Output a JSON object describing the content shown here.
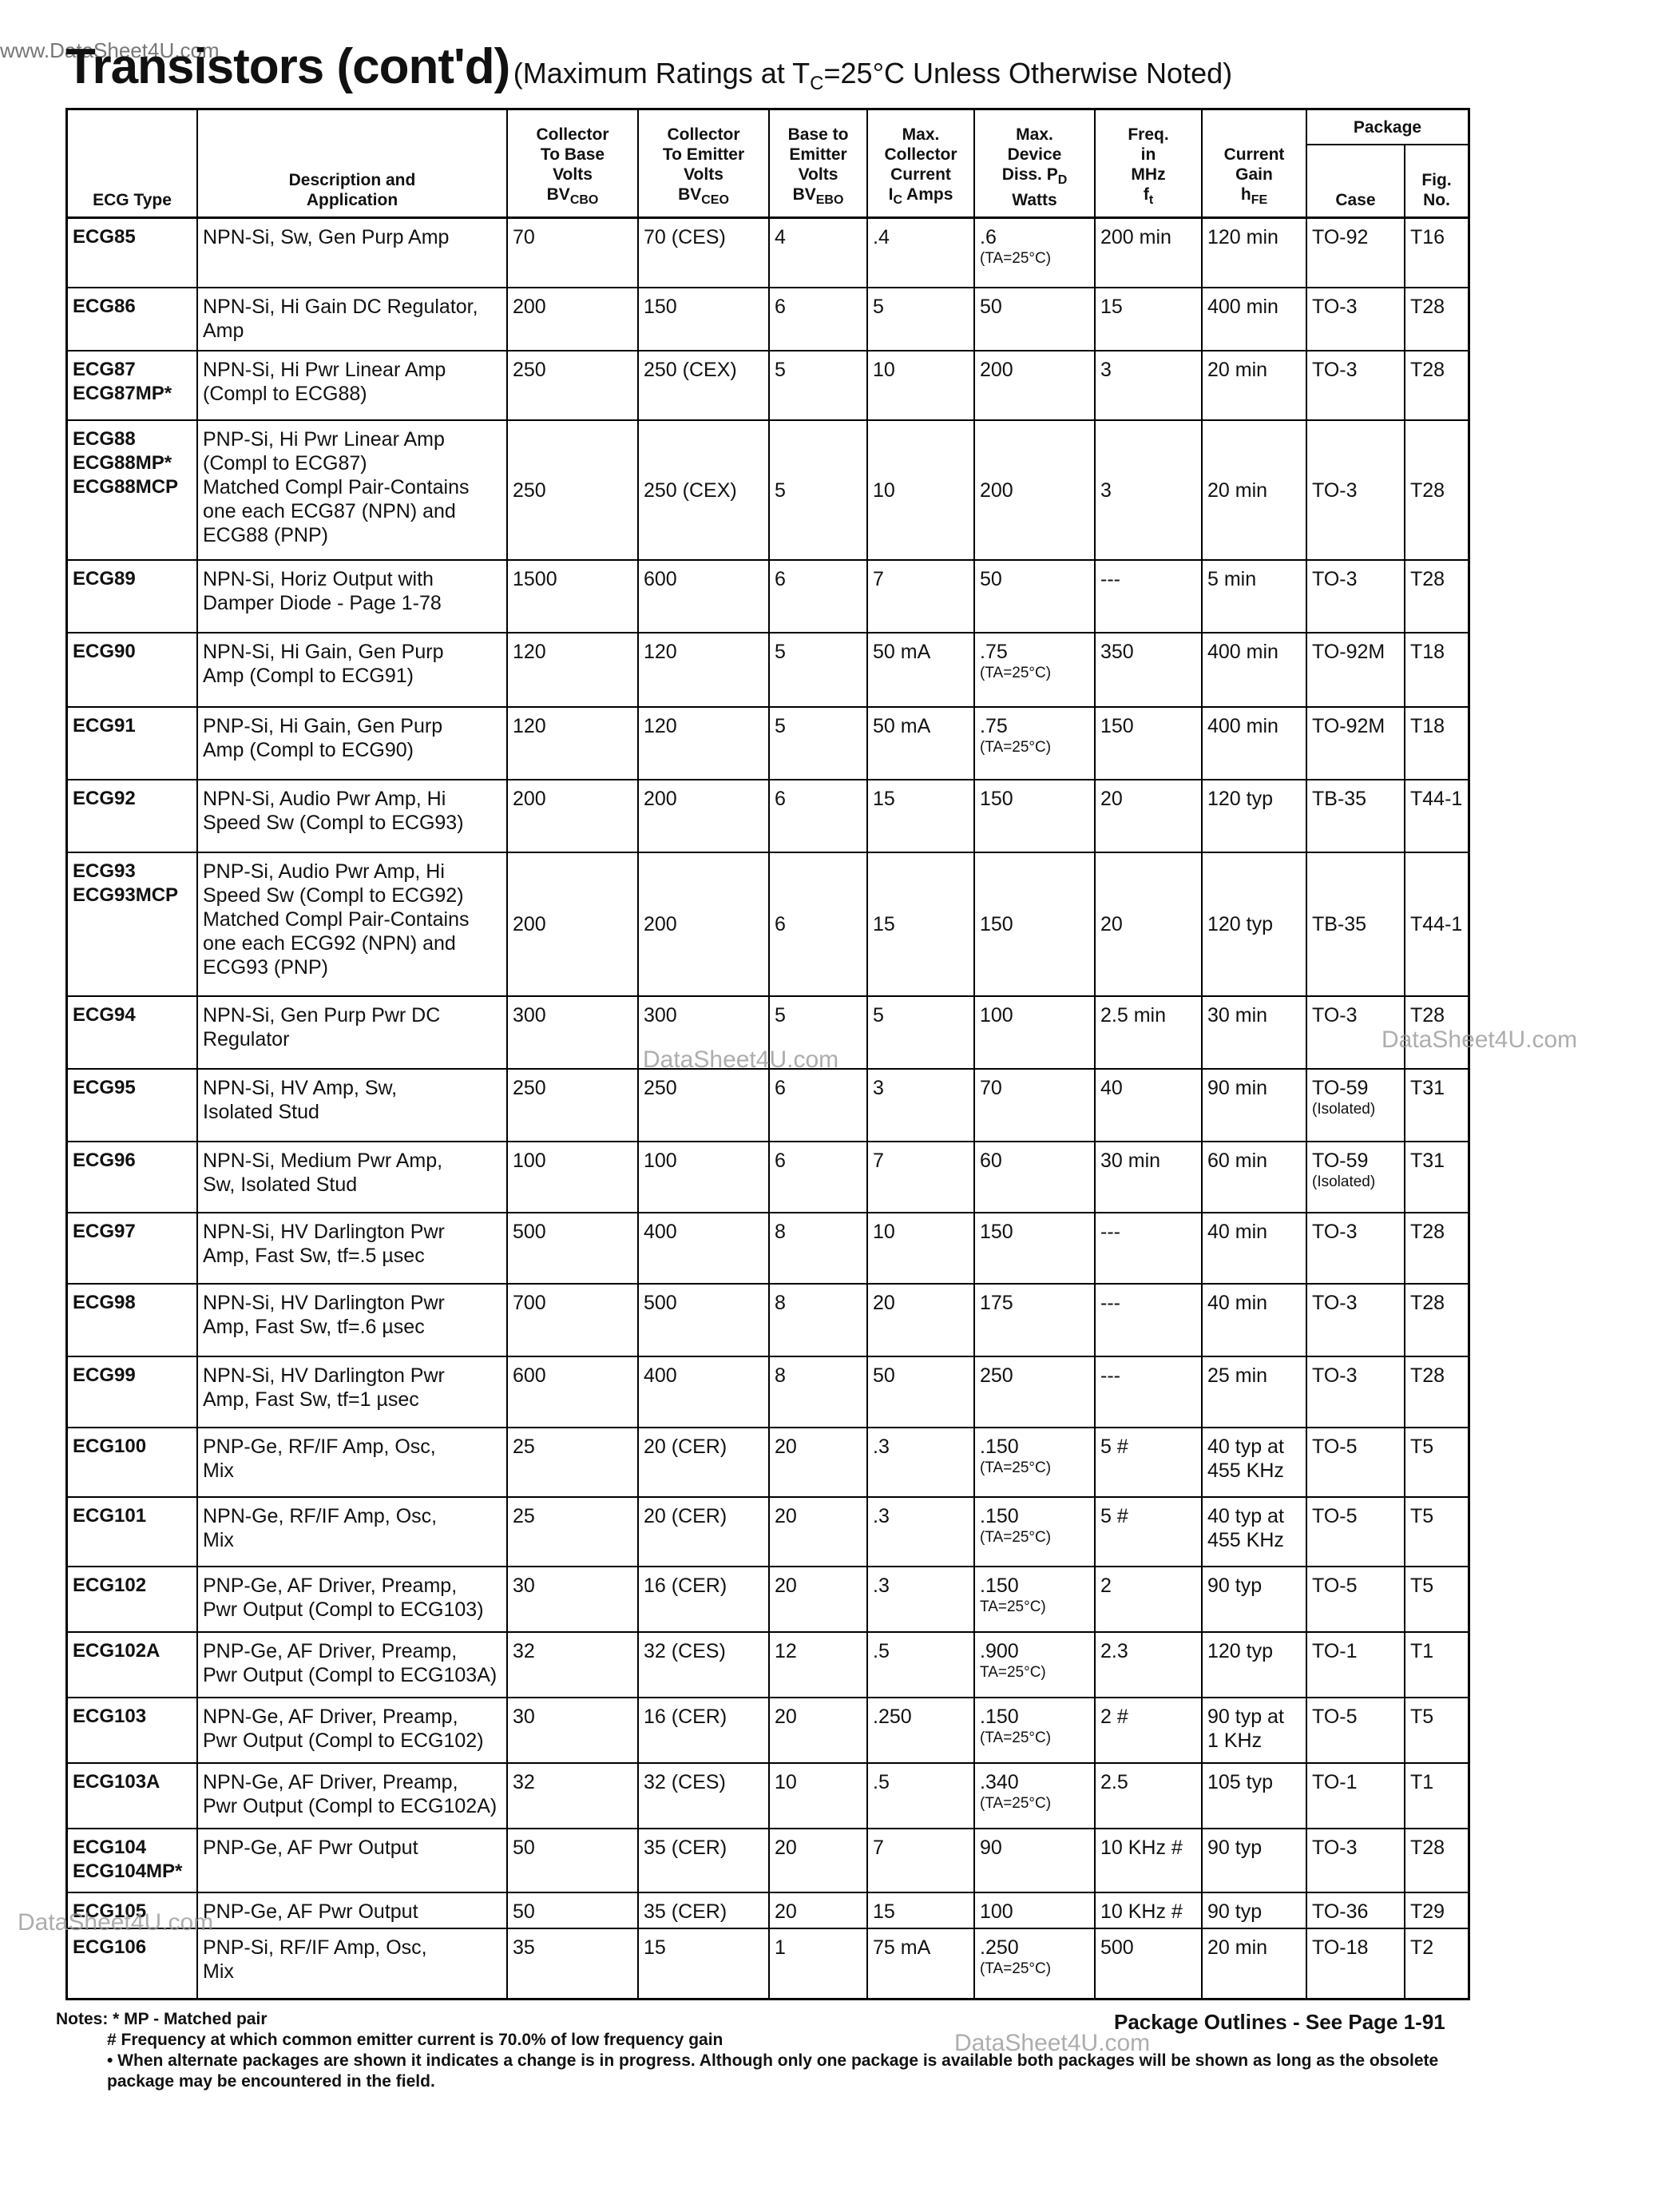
{
  "watermark_top": "www.DataSheet4U.com",
  "title": "Transistors (cont'd)",
  "subtitle": {
    "text": "(Maximum Ratings at T",
    "sub": "C",
    "after": "=25°C Unless Otherwise Noted)"
  },
  "table": {
    "package_label": "Package",
    "columns": [
      {
        "lines": [
          "ECG Type"
        ]
      },
      {
        "lines": [
          "Description and",
          "Application"
        ]
      },
      {
        "lines": [
          "Collector",
          "To Base",
          "Volts",
          {
            "text": "BV",
            "sub": "CBO"
          }
        ]
      },
      {
        "lines": [
          "Collector",
          "To Emitter",
          "Volts",
          {
            "text": "BV",
            "sub": "CEO"
          }
        ]
      },
      {
        "lines": [
          "Base to",
          "Emitter",
          "Volts",
          {
            "text": "BV",
            "sub": "EBO"
          }
        ]
      },
      {
        "lines": [
          "Max.",
          "Collector",
          "Current",
          {
            "text": "I",
            "sub": "C",
            "after": " Amps"
          }
        ]
      },
      {
        "lines": [
          "Max.",
          "Device",
          {
            "text": "Diss. P",
            "sub": "D"
          },
          "Watts"
        ]
      },
      {
        "lines": [
          "Freq.",
          "in",
          "MHz",
          {
            "text": "f",
            "sub": "t"
          }
        ]
      },
      {
        "lines": [
          "Current",
          "Gain",
          {
            "text": "h",
            "sub": "FE"
          }
        ]
      },
      {
        "lines": [
          "Case"
        ]
      },
      {
        "lines": [
          "Fig.",
          "No."
        ]
      }
    ],
    "rows": [
      [
        [
          "ECG85"
        ],
        [
          "NPN-Si, Sw, Gen Purp Amp"
        ],
        [
          "70"
        ],
        [
          "70 (CES)"
        ],
        [
          "4"
        ],
        [
          ".4"
        ],
        [
          ".6",
          "(TA=25°C)"
        ],
        [
          "200 min"
        ],
        [
          "120 min"
        ],
        [
          "TO-92"
        ],
        [
          "T16"
        ]
      ],
      [
        [
          "ECG86"
        ],
        [
          "NPN-Si, Hi Gain DC Regulator,",
          "Amp"
        ],
        [
          "200"
        ],
        [
          "150"
        ],
        [
          "6"
        ],
        [
          "5"
        ],
        [
          "50"
        ],
        [
          "15"
        ],
        [
          "400 min"
        ],
        [
          "TO-3"
        ],
        [
          "T28"
        ]
      ],
      [
        [
          "ECG87",
          "ECG87MP*"
        ],
        [
          "NPN-Si, Hi Pwr Linear Amp",
          "(Compl to ECG88)"
        ],
        [
          "250"
        ],
        [
          "250 (CEX)"
        ],
        [
          "5"
        ],
        [
          "10"
        ],
        [
          "200"
        ],
        [
          "3"
        ],
        [
          "20 min"
        ],
        [
          "TO-3"
        ],
        [
          "T28"
        ]
      ],
      [
        [
          "ECG88",
          "ECG88MP*",
          "ECG88MCP"
        ],
        [
          "PNP-Si, Hi Pwr Linear Amp",
          "(Compl to ECG87)",
          "Matched Compl Pair-Contains",
          "one each ECG87 (NPN) and",
          "ECG88 (PNP)"
        ],
        [
          "250"
        ],
        [
          "250 (CEX)"
        ],
        [
          "5"
        ],
        [
          "10"
        ],
        [
          "200"
        ],
        [
          "3"
        ],
        [
          "20 min"
        ],
        [
          "TO-3"
        ],
        [
          "T28"
        ]
      ],
      [
        [
          "ECG89"
        ],
        [
          "NPN-Si, Horiz Output with",
          "Damper Diode - Page 1-78"
        ],
        [
          "1500"
        ],
        [
          "600"
        ],
        [
          "6"
        ],
        [
          "7"
        ],
        [
          "50"
        ],
        [
          "---"
        ],
        [
          "5 min"
        ],
        [
          "TO-3"
        ],
        [
          "T28"
        ]
      ],
      [
        [
          "ECG90"
        ],
        [
          "NPN-Si, Hi Gain, Gen Purp",
          "Amp (Compl to ECG91)"
        ],
        [
          "120"
        ],
        [
          "120"
        ],
        [
          "5"
        ],
        [
          "50 mA"
        ],
        [
          ".75",
          "(TA=25°C)"
        ],
        [
          "350"
        ],
        [
          "400 min"
        ],
        [
          "TO-92M"
        ],
        [
          "T18"
        ]
      ],
      [
        [
          "ECG91"
        ],
        [
          "PNP-Si, Hi Gain, Gen Purp",
          "Amp (Compl to ECG90)"
        ],
        [
          "120"
        ],
        [
          "120"
        ],
        [
          "5"
        ],
        [
          "50 mA"
        ],
        [
          ".75",
          "(TA=25°C)"
        ],
        [
          "150"
        ],
        [
          "400 min"
        ],
        [
          "TO-92M"
        ],
        [
          "T18"
        ]
      ],
      [
        [
          "ECG92"
        ],
        [
          "NPN-Si, Audio Pwr Amp, Hi",
          "Speed Sw (Compl to ECG93)"
        ],
        [
          "200"
        ],
        [
          "200"
        ],
        [
          "6"
        ],
        [
          "15"
        ],
        [
          "150"
        ],
        [
          "20"
        ],
        [
          "120 typ"
        ],
        [
          "TB-35"
        ],
        [
          "T44-1"
        ]
      ],
      [
        [
          "ECG93",
          "ECG93MCP"
        ],
        [
          "PNP-Si, Audio Pwr Amp, Hi",
          "Speed Sw (Compl to ECG92)",
          "Matched Compl Pair-Contains",
          "one each ECG92 (NPN) and",
          "ECG93 (PNP)"
        ],
        [
          "200"
        ],
        [
          "200"
        ],
        [
          "6"
        ],
        [
          "15"
        ],
        [
          "150"
        ],
        [
          "20"
        ],
        [
          "120 typ"
        ],
        [
          "TB-35"
        ],
        [
          "T44-1"
        ]
      ],
      [
        [
          "ECG94"
        ],
        [
          "NPN-Si, Gen Purp Pwr DC",
          "Regulator"
        ],
        [
          "300"
        ],
        [
          "300"
        ],
        [
          "5"
        ],
        [
          "5"
        ],
        [
          "100"
        ],
        [
          "2.5 min"
        ],
        [
          "30 min"
        ],
        [
          "TO-3"
        ],
        [
          "T28"
        ]
      ],
      [
        [
          "ECG95"
        ],
        [
          "NPN-Si, HV Amp, Sw,",
          "Isolated Stud"
        ],
        [
          "250"
        ],
        [
          "250"
        ],
        [
          "6"
        ],
        [
          "3"
        ],
        [
          "70"
        ],
        [
          "40"
        ],
        [
          "90 min"
        ],
        [
          "TO-59",
          "(Isolated)"
        ],
        [
          "T31"
        ]
      ],
      [
        [
          "ECG96"
        ],
        [
          "NPN-Si, Medium Pwr Amp,",
          "Sw, Isolated Stud"
        ],
        [
          "100"
        ],
        [
          "100"
        ],
        [
          "6"
        ],
        [
          "7"
        ],
        [
          "60"
        ],
        [
          "30 min"
        ],
        [
          "60 min"
        ],
        [
          "TO-59",
          "(Isolated)"
        ],
        [
          "T31"
        ]
      ],
      [
        [
          "ECG97"
        ],
        [
          "NPN-Si, HV Darlington Pwr",
          "Amp, Fast Sw, tf=.5 µsec"
        ],
        [
          "500"
        ],
        [
          "400"
        ],
        [
          "8"
        ],
        [
          "10"
        ],
        [
          "150"
        ],
        [
          "---"
        ],
        [
          "40 min"
        ],
        [
          "TO-3"
        ],
        [
          "T28"
        ]
      ],
      [
        [
          "ECG98"
        ],
        [
          "NPN-Si, HV Darlington Pwr",
          "Amp, Fast Sw, tf=.6 µsec"
        ],
        [
          "700"
        ],
        [
          "500"
        ],
        [
          "8"
        ],
        [
          "20"
        ],
        [
          "175"
        ],
        [
          "---"
        ],
        [
          "40 min"
        ],
        [
          "TO-3"
        ],
        [
          "T28"
        ]
      ],
      [
        [
          "ECG99"
        ],
        [
          "NPN-Si, HV Darlington Pwr",
          "Amp, Fast Sw, tf=1 µsec"
        ],
        [
          "600"
        ],
        [
          "400"
        ],
        [
          "8"
        ],
        [
          "50"
        ],
        [
          "250"
        ],
        [
          "---"
        ],
        [
          "25 min"
        ],
        [
          "TO-3"
        ],
        [
          "T28"
        ]
      ],
      [
        [
          "ECG100"
        ],
        [
          "PNP-Ge, RF/IF Amp, Osc,",
          "Mix"
        ],
        [
          "25"
        ],
        [
          "20 (CER)"
        ],
        [
          "20"
        ],
        [
          ".3"
        ],
        [
          ".150",
          "(TA=25°C)"
        ],
        [
          "5 #"
        ],
        [
          "40 typ at",
          "455 KHz"
        ],
        [
          "TO-5"
        ],
        [
          "T5"
        ]
      ],
      [
        [
          "ECG101"
        ],
        [
          "NPN-Ge, RF/IF Amp, Osc,",
          "Mix"
        ],
        [
          "25"
        ],
        [
          "20 (CER)"
        ],
        [
          "20"
        ],
        [
          ".3"
        ],
        [
          ".150",
          "(TA=25°C)"
        ],
        [
          "5 #"
        ],
        [
          "40 typ at",
          "455 KHz"
        ],
        [
          "TO-5"
        ],
        [
          "T5"
        ]
      ],
      [
        [
          "ECG102"
        ],
        [
          "PNP-Ge, AF Driver, Preamp,",
          "Pwr Output (Compl to ECG103)"
        ],
        [
          "30"
        ],
        [
          "16 (CER)"
        ],
        [
          "20"
        ],
        [
          ".3"
        ],
        [
          ".150",
          "TA=25°C)"
        ],
        [
          "2"
        ],
        [
          "90 typ"
        ],
        [
          "TO-5"
        ],
        [
          "T5"
        ]
      ],
      [
        [
          "ECG102A"
        ],
        [
          "PNP-Ge, AF Driver, Preamp,",
          "Pwr Output (Compl to ECG103A)"
        ],
        [
          "32"
        ],
        [
          "32 (CES)"
        ],
        [
          "12"
        ],
        [
          ".5"
        ],
        [
          ".900",
          "TA=25°C)"
        ],
        [
          "2.3"
        ],
        [
          "120 typ"
        ],
        [
          "TO-1"
        ],
        [
          "T1"
        ]
      ],
      [
        [
          "ECG103"
        ],
        [
          "NPN-Ge, AF Driver, Preamp,",
          "Pwr Output (Compl to ECG102)"
        ],
        [
          "30"
        ],
        [
          "16 (CER)"
        ],
        [
          "20"
        ],
        [
          ".250"
        ],
        [
          ".150",
          "(TA=25°C)"
        ],
        [
          "2 #"
        ],
        [
          "90 typ at",
          "1 KHz"
        ],
        [
          "TO-5"
        ],
        [
          "T5"
        ]
      ],
      [
        [
          "ECG103A"
        ],
        [
          "NPN-Ge, AF Driver, Preamp,",
          "Pwr Output (Compl to ECG102A)"
        ],
        [
          "32"
        ],
        [
          "32 (CES)"
        ],
        [
          "10"
        ],
        [
          ".5"
        ],
        [
          ".340",
          "(TA=25°C)"
        ],
        [
          "2.5"
        ],
        [
          "105 typ"
        ],
        [
          "TO-1"
        ],
        [
          "T1"
        ]
      ],
      [
        [
          "ECG104",
          "ECG104MP*"
        ],
        [
          "PNP-Ge, AF Pwr Output"
        ],
        [
          "50"
        ],
        [
          "35 (CER)"
        ],
        [
          "20"
        ],
        [
          "7"
        ],
        [
          "90"
        ],
        [
          "10 KHz #"
        ],
        [
          "90 typ"
        ],
        [
          "TO-3"
        ],
        [
          "T28"
        ]
      ],
      [
        [
          "ECG105"
        ],
        [
          "PNP-Ge, AF Pwr Output"
        ],
        [
          "50"
        ],
        [
          "35 (CER)"
        ],
        [
          "20"
        ],
        [
          "15"
        ],
        [
          "100"
        ],
        [
          "10 KHz #"
        ],
        [
          "90 typ"
        ],
        [
          "TO-36"
        ],
        [
          "T29"
        ]
      ],
      [
        [
          "ECG106"
        ],
        [
          "PNP-Si, RF/IF Amp, Osc,",
          "Mix"
        ],
        [
          "35"
        ],
        [
          "15"
        ],
        [
          "1"
        ],
        [
          "75 mA"
        ],
        [
          ".250",
          "(TA=25°C)"
        ],
        [
          "500"
        ],
        [
          "20 min"
        ],
        [
          "TO-18"
        ],
        [
          "T2"
        ]
      ]
    ]
  },
  "notes": [
    "Notes: * MP - Matched pair",
    "# Frequency at which common emitter current is 70.0% of low frequency gain",
    "• When alternate packages are shown it indicates a change is in progress. Although only one package is available both packages will be shown as long as the obsolete package may be encountered in the field."
  ],
  "footer": "Package Outlines - See Page 1-91",
  "watermarks": [
    "DataSheet4U.com",
    "DataSheet4U.com",
    "DataSheet4U.com",
    "DataSheet4U.com"
  ]
}
